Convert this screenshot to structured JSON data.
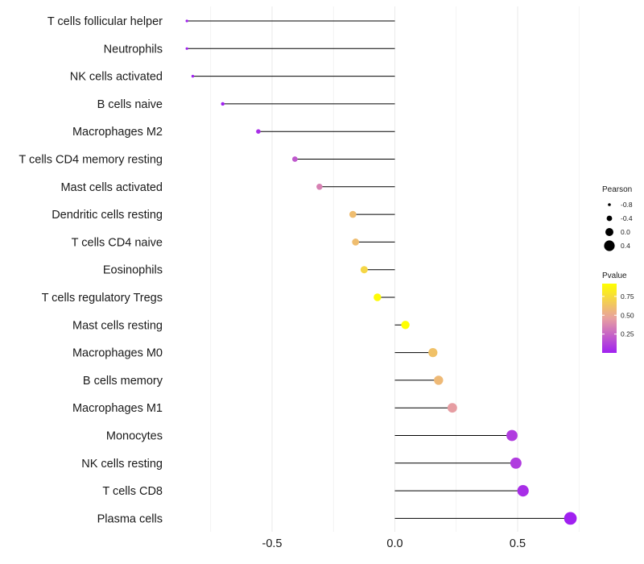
{
  "chart_data": {
    "type": "lollipop",
    "title": "",
    "xlabel": "",
    "ylabel": "",
    "xlim": [
      -1.0,
      0.78
    ],
    "xticks": [
      -0.5,
      0.0,
      0.5
    ],
    "xtick_labels": [
      "-0.5",
      "0.0",
      "0.5"
    ],
    "baseline": 0.0,
    "categories": [
      "T cells follicular helper",
      "Neutrophils",
      "NK cells activated",
      "B cells naive",
      "Macrophages M2",
      "T cells CD4 memory resting",
      "Mast cells activated",
      "Dendritic cells resting",
      "T cells CD4 naive",
      "Eosinophils",
      "T cells regulatory  Tregs",
      "Mast cells resting",
      "Macrophages M0",
      "B cells memory",
      "Macrophages M1",
      "Monocytes",
      "NK cells resting",
      "T cells CD8",
      "Plasma cells"
    ],
    "pearson": [
      -0.847,
      -0.847,
      -0.823,
      -0.701,
      -0.556,
      -0.407,
      -0.307,
      -0.171,
      -0.16,
      -0.125,
      -0.071,
      0.043,
      0.155,
      0.178,
      0.234,
      0.477,
      0.493,
      0.522,
      0.715
    ],
    "pvalue": [
      0.0,
      0.0,
      0.0,
      0.0,
      0.05,
      0.2,
      0.35,
      0.6,
      0.6,
      0.72,
      0.9,
      0.92,
      0.62,
      0.58,
      0.45,
      0.1,
      0.1,
      0.05,
      0.0
    ],
    "legend_size": {
      "title": "Pearson",
      "values": [
        -0.8,
        -0.4,
        0.0,
        0.4
      ],
      "labels": [
        "-0.8",
        "-0.4",
        "0.0",
        "0.4"
      ]
    },
    "legend_color": {
      "title": "Pvalue",
      "range": [
        0.0,
        0.92
      ],
      "ticks": [
        0.25,
        0.5,
        0.75
      ],
      "tick_labels": [
        "0.25",
        "0.50",
        "0.75"
      ],
      "low_color": "#a020f0",
      "mid_color": "#e8a0a0",
      "high_color": "#ffff00"
    }
  },
  "colors": {
    "grid": "#ebebeb",
    "stem": "#000000",
    "legend_point": "#000000"
  }
}
